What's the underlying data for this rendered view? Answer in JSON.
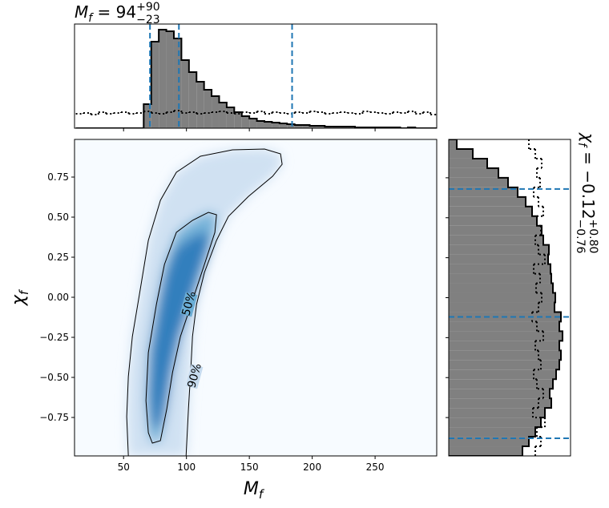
{
  "chart_data": [
    {
      "type": "histogram",
      "orientation": "vertical",
      "title": {
        "var": "M",
        "sub": "f",
        "eq": " = 94",
        "sup": "+90",
        "inf": "−23"
      },
      "bins": [
        12,
        18,
        24,
        30,
        36,
        42,
        48,
        54,
        60,
        66,
        72,
        78,
        84,
        90,
        96,
        102,
        108,
        114,
        120,
        126,
        132,
        138,
        144,
        150,
        156,
        162,
        168,
        174,
        180,
        186,
        192,
        198,
        204,
        210,
        216,
        222,
        228,
        234,
        240,
        246,
        252,
        258,
        264,
        270,
        276,
        282,
        288,
        294,
        300
      ],
      "values": [
        0,
        0,
        0,
        0,
        0,
        0,
        0,
        0,
        0,
        30,
        108,
        123,
        121,
        112,
        85,
        70,
        58,
        48,
        40,
        32,
        26,
        20,
        15,
        12,
        9,
        8,
        7,
        6,
        5,
        4,
        4,
        3,
        3,
        2,
        2,
        2,
        2,
        1,
        1,
        1,
        1,
        1,
        1,
        0,
        1,
        0,
        0,
        0
      ],
      "prior_values": [
        18,
        19,
        17,
        20,
        18,
        19,
        20,
        18,
        19,
        21,
        19,
        18,
        20,
        22,
        19,
        20,
        18,
        19,
        20,
        21,
        19,
        18,
        20,
        19,
        21,
        18,
        20,
        19,
        18,
        20,
        19,
        21,
        20,
        18,
        19,
        20,
        19,
        18,
        21,
        20,
        19,
        18,
        20,
        19,
        21,
        18,
        20,
        17
      ],
      "color": "#808080",
      "prior_color": "#000000",
      "quantiles": [
        71,
        94,
        184
      ],
      "quantile_color": "#1f77b4",
      "xlim": [
        11,
        299
      ],
      "ylim": [
        0,
        130
      ],
      "xticks": [
        50,
        100,
        150,
        200,
        250
      ]
    },
    {
      "type": "contour",
      "xlabel": {
        "var": "M",
        "sub": "f"
      },
      "ylabel": {
        "var": "χ",
        "sub": "f"
      },
      "xlim": [
        11,
        299
      ],
      "ylim": [
        -0.99,
        0.985
      ],
      "xticks": [
        50,
        100,
        150,
        200,
        250
      ],
      "yticks": [
        0.75,
        {
          "value": 0.5,
          "label": "0.50"
        },
        0.25,
        {
          "value": 0,
          "label": "0.00"
        },
        {
          "value": -0.25,
          "label": "−0.25"
        },
        {
          "value": -0.5,
          "label": "−0.50"
        },
        {
          "value": -0.75,
          "label": "−0.75"
        }
      ],
      "contours": [
        {
          "label": "90%",
          "x": [
            53.8,
            52.5,
            53.8,
            57.0,
            63.4,
            69.7,
            79.3,
            92.0,
            111.1,
            136.6,
            162.1,
            174.8,
            176.1,
            168.5,
            149.4,
            133.4,
            123.9,
            114.3,
            108.0,
            104.8,
            103.5,
            101.6,
            99.7
          ],
          "y": [
            -0.99,
            -0.745,
            -0.495,
            -0.245,
            0.055,
            0.355,
            0.605,
            0.78,
            0.88,
            0.92,
            0.925,
            0.895,
            0.83,
            0.755,
            0.63,
            0.505,
            0.355,
            0.155,
            -0.045,
            -0.245,
            -0.445,
            -0.695,
            -0.99
          ]
        },
        {
          "label": "50%",
          "x": [
            69.7,
            67.8,
            69.7,
            76.1,
            82.5,
            92.0,
            104.8,
            117.5,
            123.9,
            122.6,
            114.3,
            104.8,
            95.2,
            88.9,
            84.4,
            79.3,
            72.9
          ],
          "y": [
            -0.845,
            -0.645,
            -0.345,
            -0.045,
            0.205,
            0.405,
            0.48,
            0.53,
            0.515,
            0.405,
            0.205,
            -0.02,
            -0.245,
            -0.47,
            -0.695,
            -0.895,
            -0.91
          ]
        }
      ],
      "colormap": [
        "#f7fbff",
        "#c6dbef",
        "#6baed6",
        "#2171b5",
        "#08306b"
      ]
    },
    {
      "type": "histogram",
      "orientation": "horizontal",
      "title": {
        "var": "χ",
        "sub": "f",
        "eq": " = −0.12",
        "sup": "+0.80",
        "inf": "−0.76"
      },
      "bins": [
        -0.99,
        -0.93,
        -0.87,
        -0.81,
        -0.75,
        -0.69,
        -0.63,
        -0.57,
        -0.51,
        -0.45,
        -0.39,
        -0.33,
        -0.27,
        -0.21,
        -0.15,
        -0.09,
        -0.03,
        0.03,
        0.09,
        0.15,
        0.21,
        0.27,
        0.33,
        0.39,
        0.45,
        0.51,
        0.57,
        0.63,
        0.69,
        0.75,
        0.81,
        0.87,
        0.93,
        0.99
      ],
      "values": [
        92,
        100,
        108,
        115,
        120,
        128,
        126,
        130,
        134,
        138,
        140,
        138,
        142,
        138,
        140,
        132,
        133,
        130,
        128,
        127,
        124,
        125,
        118,
        116,
        110,
        104,
        96,
        86,
        74,
        62,
        48,
        30,
        10
      ],
      "prior_values": [
        108,
        115,
        110,
        120,
        105,
        112,
        118,
        110,
        106,
        115,
        112,
        108,
        118,
        110,
        104,
        112,
        116,
        109,
        114,
        106,
        120,
        112,
        108,
        115,
        110,
        118,
        112,
        106,
        114,
        110,
        116,
        108,
        100
      ],
      "color": "#808080",
      "prior_color": "#000000",
      "quantiles": [
        -0.88,
        -0.12,
        0.68
      ],
      "quantile_color": "#1f77b4",
      "xlim": [
        0,
        152
      ],
      "ylim": [
        -0.99,
        0.99
      ],
      "yticks": [
        0.75,
        0.5,
        0.25,
        0,
        -0.25,
        -0.5,
        -0.75
      ]
    }
  ]
}
